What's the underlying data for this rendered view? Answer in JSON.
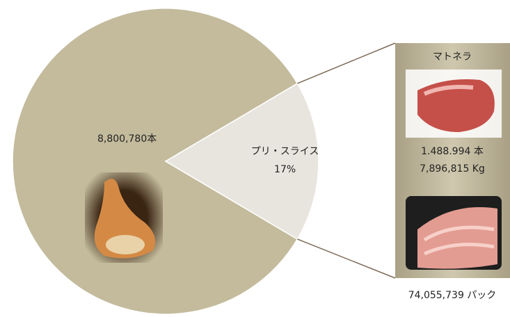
{
  "chart_data": {
    "type": "pie",
    "categories": [
      null,
      "プリ・スライス"
    ],
    "values": [
      83,
      17
    ],
    "value_labels": [
      null,
      "17%"
    ],
    "colors": [
      "#c3bb9c",
      "#e8e5de"
    ],
    "annotations": [
      "8,800,780本",
      "マトネラ",
      "1.488.994 本",
      "7,896,815 Kg",
      "74,055,739 パック"
    ]
  }
}
